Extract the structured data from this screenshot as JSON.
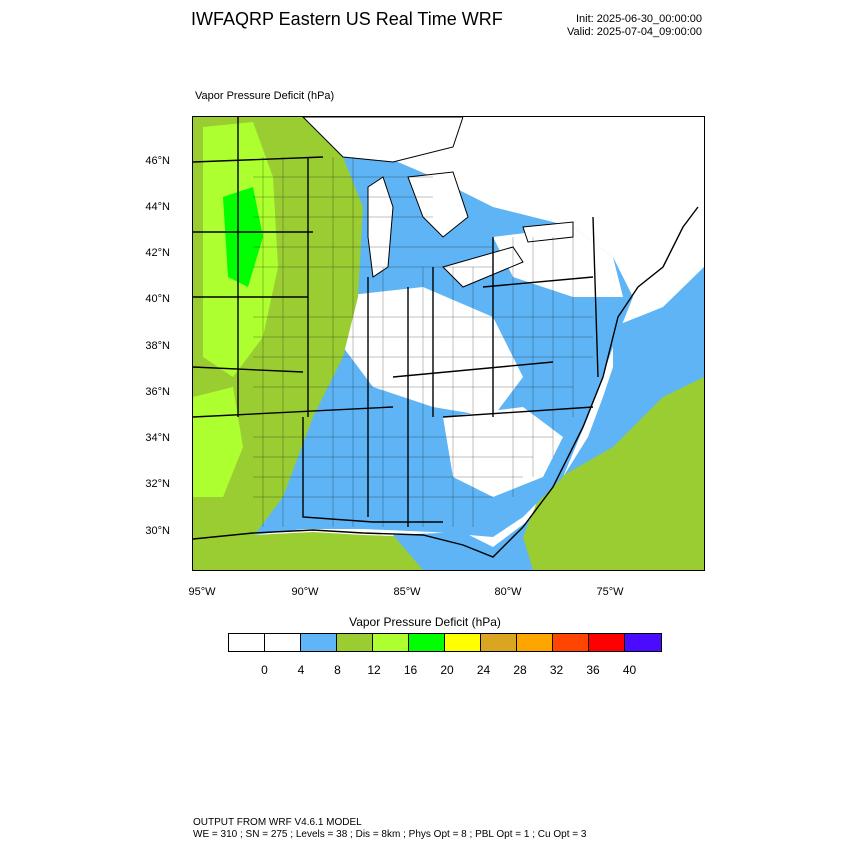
{
  "header": {
    "title": "IWFAQRP Eastern US Real Time WRF",
    "init": "Init: 2025-06-30_00:00:00",
    "valid": "Valid: 2025-07-04_09:00:00"
  },
  "map": {
    "field_label": "Vapor Pressure Deficit   (hPa)",
    "lat_labels": [
      "46°N",
      "44°N",
      "42°N",
      "40°N",
      "38°N",
      "36°N",
      "34°N",
      "32°N",
      "30°N"
    ],
    "lon_labels": [
      "95°W",
      "90°W",
      "85°W",
      "80°W",
      "75°W"
    ],
    "colors": {
      "water": "#5eb4f5",
      "land_low": "#ffffff",
      "olive": "#9acd32",
      "light_green": "#adff2f",
      "green": "#00ff00",
      "borders": "#000000"
    }
  },
  "colorbar": {
    "title": "Vapor Pressure Deficit  (hPa)",
    "colors": [
      "#ffffff",
      "#ffffff",
      "#60b4f8",
      "#9acd32",
      "#adff2f",
      "#00ff00",
      "#ffff00",
      "#daa520",
      "#ffa500",
      "#ff4500",
      "#ff0000",
      "#4b0bff"
    ],
    "tick_labels": [
      "0",
      "4",
      "8",
      "12",
      "16",
      "20",
      "24",
      "28",
      "32",
      "36",
      "40"
    ]
  },
  "footer": {
    "line1": "OUTPUT FROM WRF V4.6.1 MODEL",
    "line2": "WE = 310 ; SN = 275 ; Levels = 38 ; Dis = 8km ; Phys Opt = 8 ; PBL Opt = 1 ; Cu Opt = 3"
  }
}
